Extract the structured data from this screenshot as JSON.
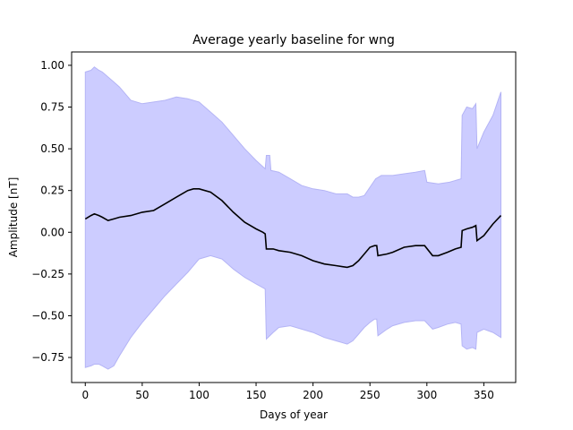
{
  "chart_data": {
    "type": "area",
    "title": "Average yearly baseline for wng",
    "xlabel": "Days of year",
    "ylabel": "Amplitude [nT]",
    "xlim": [
      -12,
      378
    ],
    "ylim": [
      -0.9,
      1.08
    ],
    "x_ticks": [
      0,
      50,
      100,
      150,
      200,
      250,
      300,
      350
    ],
    "y_ticks": [
      -0.75,
      -0.5,
      -0.25,
      0.0,
      0.25,
      0.5,
      0.75,
      1.0
    ],
    "y_tick_labels": [
      "−0.75",
      "−0.50",
      "−0.25",
      "0.00",
      "0.25",
      "0.50",
      "0.75",
      "1.00"
    ],
    "grid": false,
    "colors": {
      "band_fill": "#ccccff",
      "band_edge": "#b4b4f5",
      "line": "#000000"
    },
    "series": [
      {
        "role": "mean",
        "points": [
          [
            0,
            0.08
          ],
          [
            5,
            0.1
          ],
          [
            8,
            0.11
          ],
          [
            12,
            0.1
          ],
          [
            15,
            0.09
          ],
          [
            20,
            0.07
          ],
          [
            25,
            0.08
          ],
          [
            30,
            0.09
          ],
          [
            40,
            0.1
          ],
          [
            50,
            0.12
          ],
          [
            60,
            0.13
          ],
          [
            70,
            0.17
          ],
          [
            80,
            0.21
          ],
          [
            90,
            0.25
          ],
          [
            95,
            0.26
          ],
          [
            100,
            0.26
          ],
          [
            110,
            0.24
          ],
          [
            120,
            0.19
          ],
          [
            130,
            0.12
          ],
          [
            140,
            0.06
          ],
          [
            150,
            0.02
          ],
          [
            156,
            0.0
          ],
          [
            158,
            -0.01
          ],
          [
            159,
            -0.1
          ],
          [
            165,
            -0.1
          ],
          [
            170,
            -0.11
          ],
          [
            180,
            -0.12
          ],
          [
            190,
            -0.14
          ],
          [
            200,
            -0.17
          ],
          [
            210,
            -0.19
          ],
          [
            220,
            -0.2
          ],
          [
            230,
            -0.21
          ],
          [
            235,
            -0.2
          ],
          [
            240,
            -0.17
          ],
          [
            245,
            -0.13
          ],
          [
            250,
            -0.09
          ],
          [
            254,
            -0.08
          ],
          [
            256,
            -0.08
          ],
          [
            257,
            -0.14
          ],
          [
            265,
            -0.13
          ],
          [
            270,
            -0.12
          ],
          [
            280,
            -0.09
          ],
          [
            290,
            -0.08
          ],
          [
            298,
            -0.08
          ],
          [
            305,
            -0.14
          ],
          [
            310,
            -0.14
          ],
          [
            318,
            -0.12
          ],
          [
            325,
            -0.1
          ],
          [
            330,
            -0.09
          ],
          [
            331,
            0.01
          ],
          [
            335,
            0.02
          ],
          [
            340,
            0.03
          ],
          [
            343,
            0.04
          ],
          [
            344,
            -0.05
          ],
          [
            350,
            -0.02
          ],
          [
            358,
            0.05
          ],
          [
            365,
            0.1
          ]
        ]
      },
      {
        "role": "upper",
        "points": [
          [
            0,
            0.96
          ],
          [
            5,
            0.97
          ],
          [
            8,
            0.99
          ],
          [
            12,
            0.97
          ],
          [
            15,
            0.96
          ],
          [
            20,
            0.93
          ],
          [
            25,
            0.9
          ],
          [
            30,
            0.87
          ],
          [
            35,
            0.83
          ],
          [
            40,
            0.79
          ],
          [
            50,
            0.77
          ],
          [
            60,
            0.78
          ],
          [
            70,
            0.79
          ],
          [
            80,
            0.81
          ],
          [
            90,
            0.8
          ],
          [
            100,
            0.78
          ],
          [
            110,
            0.72
          ],
          [
            120,
            0.66
          ],
          [
            130,
            0.58
          ],
          [
            140,
            0.5
          ],
          [
            150,
            0.43
          ],
          [
            158,
            0.38
          ],
          [
            159,
            0.46
          ],
          [
            162,
            0.46
          ],
          [
            163,
            0.37
          ],
          [
            170,
            0.36
          ],
          [
            180,
            0.32
          ],
          [
            190,
            0.28
          ],
          [
            200,
            0.26
          ],
          [
            210,
            0.25
          ],
          [
            220,
            0.23
          ],
          [
            230,
            0.23
          ],
          [
            235,
            0.21
          ],
          [
            240,
            0.21
          ],
          [
            245,
            0.22
          ],
          [
            250,
            0.27
          ],
          [
            255,
            0.32
          ],
          [
            260,
            0.34
          ],
          [
            270,
            0.34
          ],
          [
            280,
            0.35
          ],
          [
            290,
            0.36
          ],
          [
            298,
            0.37
          ],
          [
            300,
            0.3
          ],
          [
            310,
            0.29
          ],
          [
            320,
            0.3
          ],
          [
            330,
            0.32
          ],
          [
            331,
            0.7
          ],
          [
            335,
            0.75
          ],
          [
            340,
            0.74
          ],
          [
            343,
            0.77
          ],
          [
            344,
            0.5
          ],
          [
            350,
            0.6
          ],
          [
            358,
            0.7
          ],
          [
            365,
            0.84
          ]
        ]
      },
      {
        "role": "lower",
        "points": [
          [
            0,
            -0.81
          ],
          [
            5,
            -0.8
          ],
          [
            8,
            -0.79
          ],
          [
            12,
            -0.79
          ],
          [
            15,
            -0.8
          ],
          [
            20,
            -0.82
          ],
          [
            25,
            -0.8
          ],
          [
            30,
            -0.74
          ],
          [
            40,
            -0.63
          ],
          [
            50,
            -0.54
          ],
          [
            60,
            -0.46
          ],
          [
            70,
            -0.38
          ],
          [
            80,
            -0.31
          ],
          [
            90,
            -0.24
          ],
          [
            100,
            -0.16
          ],
          [
            110,
            -0.14
          ],
          [
            120,
            -0.16
          ],
          [
            130,
            -0.22
          ],
          [
            140,
            -0.27
          ],
          [
            150,
            -0.31
          ],
          [
            158,
            -0.34
          ],
          [
            159,
            -0.64
          ],
          [
            165,
            -0.6
          ],
          [
            170,
            -0.57
          ],
          [
            180,
            -0.56
          ],
          [
            190,
            -0.58
          ],
          [
            200,
            -0.6
          ],
          [
            210,
            -0.63
          ],
          [
            220,
            -0.65
          ],
          [
            230,
            -0.67
          ],
          [
            235,
            -0.65
          ],
          [
            240,
            -0.61
          ],
          [
            245,
            -0.57
          ],
          [
            250,
            -0.54
          ],
          [
            254,
            -0.52
          ],
          [
            256,
            -0.52
          ],
          [
            257,
            -0.62
          ],
          [
            265,
            -0.58
          ],
          [
            270,
            -0.56
          ],
          [
            280,
            -0.54
          ],
          [
            290,
            -0.53
          ],
          [
            298,
            -0.53
          ],
          [
            305,
            -0.58
          ],
          [
            310,
            -0.57
          ],
          [
            318,
            -0.55
          ],
          [
            325,
            -0.54
          ],
          [
            330,
            -0.55
          ],
          [
            331,
            -0.68
          ],
          [
            335,
            -0.7
          ],
          [
            340,
            -0.69
          ],
          [
            343,
            -0.7
          ],
          [
            344,
            -0.6
          ],
          [
            350,
            -0.58
          ],
          [
            358,
            -0.6
          ],
          [
            365,
            -0.63
          ]
        ]
      }
    ]
  }
}
